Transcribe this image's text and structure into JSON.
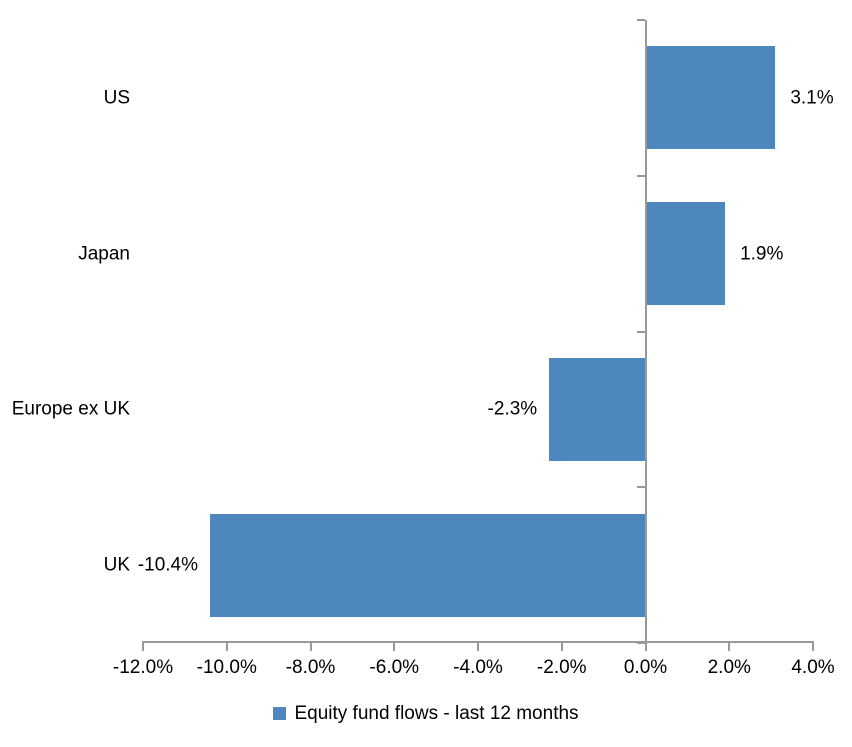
{
  "chart_data": {
    "type": "bar",
    "orientation": "horizontal",
    "title": "",
    "categories": [
      "US",
      "Japan",
      "Europe ex UK",
      "UK"
    ],
    "values": [
      3.1,
      1.9,
      -2.3,
      -10.4
    ],
    "data_labels": [
      "3.1%",
      "1.9%",
      "-2.3%",
      "-10.4%"
    ],
    "x_tick_labels": [
      "-12.0%",
      "-10.0%",
      "-8.0%",
      "-6.0%",
      "-4.0%",
      "-2.0%",
      "0.0%",
      "2.0%",
      "4.0%"
    ],
    "xlim": [
      -12,
      4
    ],
    "grid": "off",
    "legend": "Equity fund flows - last 12 months",
    "legend_position": "bottom-center",
    "bar_color": "#4E87BE",
    "axis_color": "#999999",
    "text_color": "#000000",
    "background_color": "#FFFFFF"
  }
}
